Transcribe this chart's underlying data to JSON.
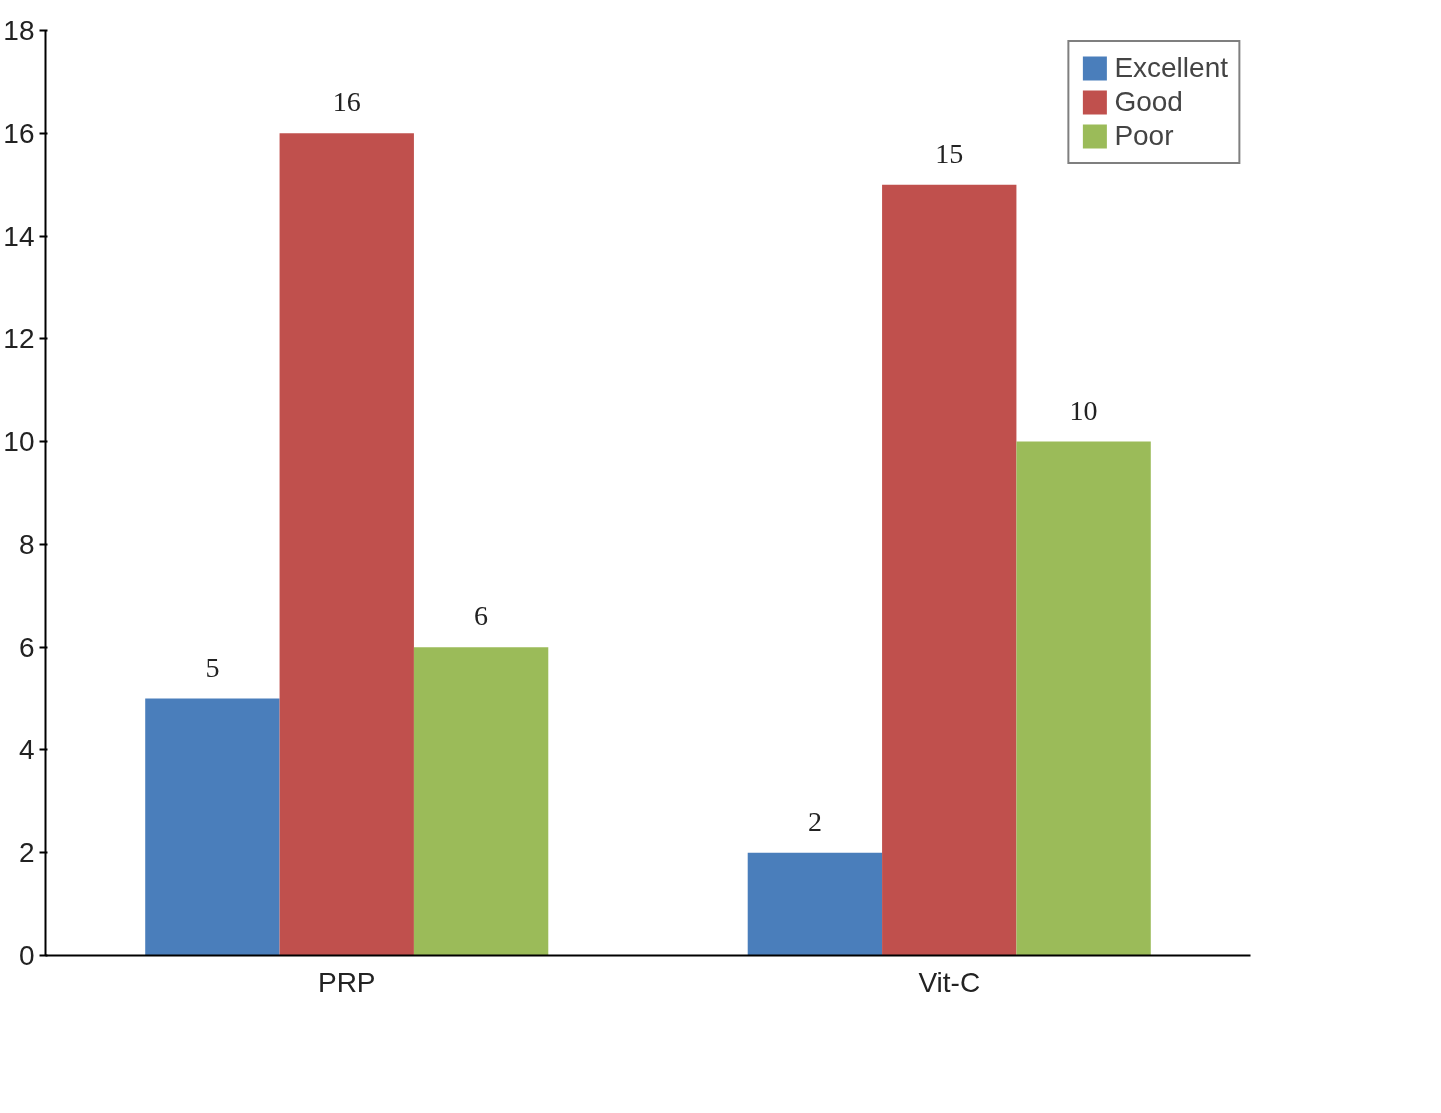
{
  "chart_data": {
    "type": "bar",
    "categories": [
      "PRP",
      "Vit-C"
    ],
    "series": [
      {
        "name": "Excellent",
        "color": "#4a7ebb",
        "values": [
          5,
          2
        ]
      },
      {
        "name": "Good",
        "color": "#c0504d",
        "values": [
          16,
          15
        ]
      },
      {
        "name": "Poor",
        "color": "#9bbb59",
        "values": [
          6,
          10
        ]
      }
    ],
    "ylim": [
      0,
      18
    ],
    "yticks": [
      0,
      2,
      4,
      6,
      8,
      10,
      12,
      14,
      16,
      18
    ],
    "data_labels": true,
    "grid": false,
    "legend": "top right"
  }
}
